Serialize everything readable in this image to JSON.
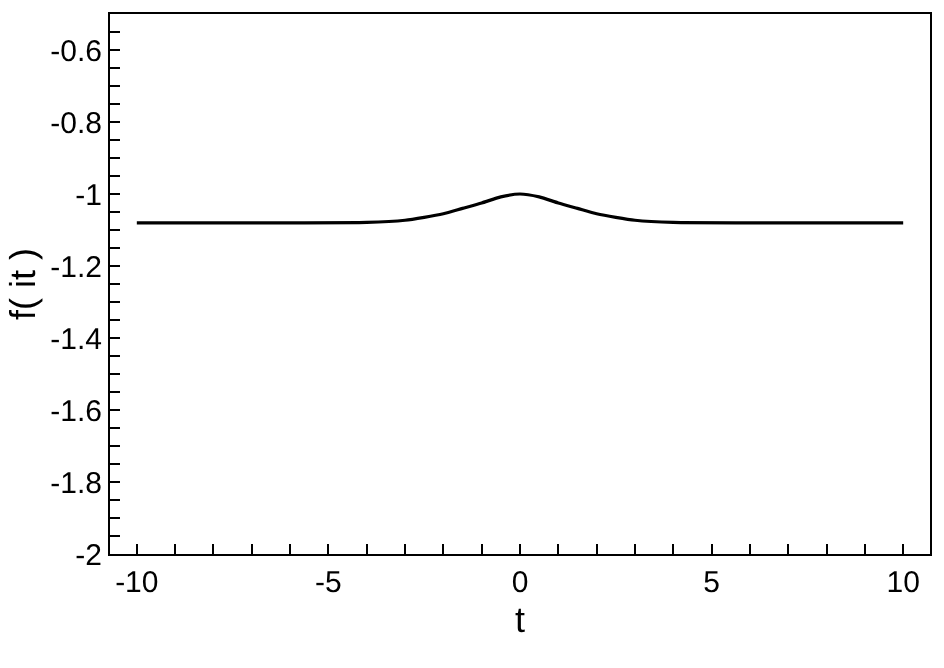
{
  "chart_data": {
    "type": "line",
    "xlabel": "t",
    "ylabel": "f( it )",
    "x": [
      -10,
      -6,
      -4,
      -3,
      -2.5,
      -2,
      -1.5,
      -1,
      -0.5,
      0,
      0.5,
      1,
      1.5,
      2,
      2.5,
      3,
      4,
      6,
      10
    ],
    "series": [
      {
        "color": "#000000",
        "values": [
          -1.08,
          -1.08,
          -1.079,
          -1.073,
          -1.065,
          -1.055,
          -1.04,
          -1.025,
          -1.008,
          -1.0,
          -1.008,
          -1.025,
          -1.04,
          -1.055,
          -1.065,
          -1.073,
          -1.079,
          -1.08,
          -1.08
        ]
      }
    ],
    "xlim": [
      -10.7,
      10.7
    ],
    "xticks": [
      -10,
      {
        "value": -9,
        "label": null
      },
      {
        "value": -8,
        "label": null
      },
      {
        "value": -7,
        "label": null
      },
      {
        "value": -6,
        "label": null
      },
      -5,
      {
        "value": -4,
        "label": null
      },
      {
        "value": -3,
        "label": null
      },
      {
        "value": -2,
        "label": null
      },
      {
        "value": -1,
        "label": null
      },
      0,
      {
        "value": 1,
        "label": null
      },
      {
        "value": 2,
        "label": null
      },
      {
        "value": 3,
        "label": null
      },
      {
        "value": 4,
        "label": null
      },
      5,
      {
        "value": 6,
        "label": null
      },
      {
        "value": 7,
        "label": null
      },
      {
        "value": 8,
        "label": null
      },
      {
        "value": 9,
        "label": null
      },
      10
    ],
    "ylim": [
      -2,
      -0.5
    ],
    "yticks": [
      -2,
      {
        "value": -1.95,
        "label": null
      },
      {
        "value": -1.9,
        "label": null
      },
      {
        "value": -1.85,
        "label": null
      },
      -1.8,
      {
        "value": -1.75,
        "label": null
      },
      {
        "value": -1.7,
        "label": null
      },
      {
        "value": -1.65,
        "label": null
      },
      -1.6,
      {
        "value": -1.55,
        "label": null
      },
      {
        "value": -1.5,
        "label": null
      },
      {
        "value": -1.45,
        "label": null
      },
      -1.4,
      {
        "value": -1.35,
        "label": null
      },
      {
        "value": -1.3,
        "label": null
      },
      {
        "value": -1.25,
        "label": null
      },
      -1.2,
      {
        "value": -1.15,
        "label": null
      },
      {
        "value": -1.1,
        "label": null
      },
      {
        "value": -1.05,
        "label": null
      },
      -1,
      {
        "value": -0.95,
        "label": null
      },
      {
        "value": -0.9,
        "label": null
      },
      {
        "value": -0.85,
        "label": null
      },
      -0.8,
      {
        "value": -0.75,
        "label": null
      },
      {
        "value": -0.7,
        "label": null
      },
      {
        "value": -0.65,
        "label": null
      },
      -0.6,
      {
        "value": -0.55,
        "label": null
      }
    ],
    "grid": false,
    "marker": "none",
    "line_style": "solid"
  }
}
